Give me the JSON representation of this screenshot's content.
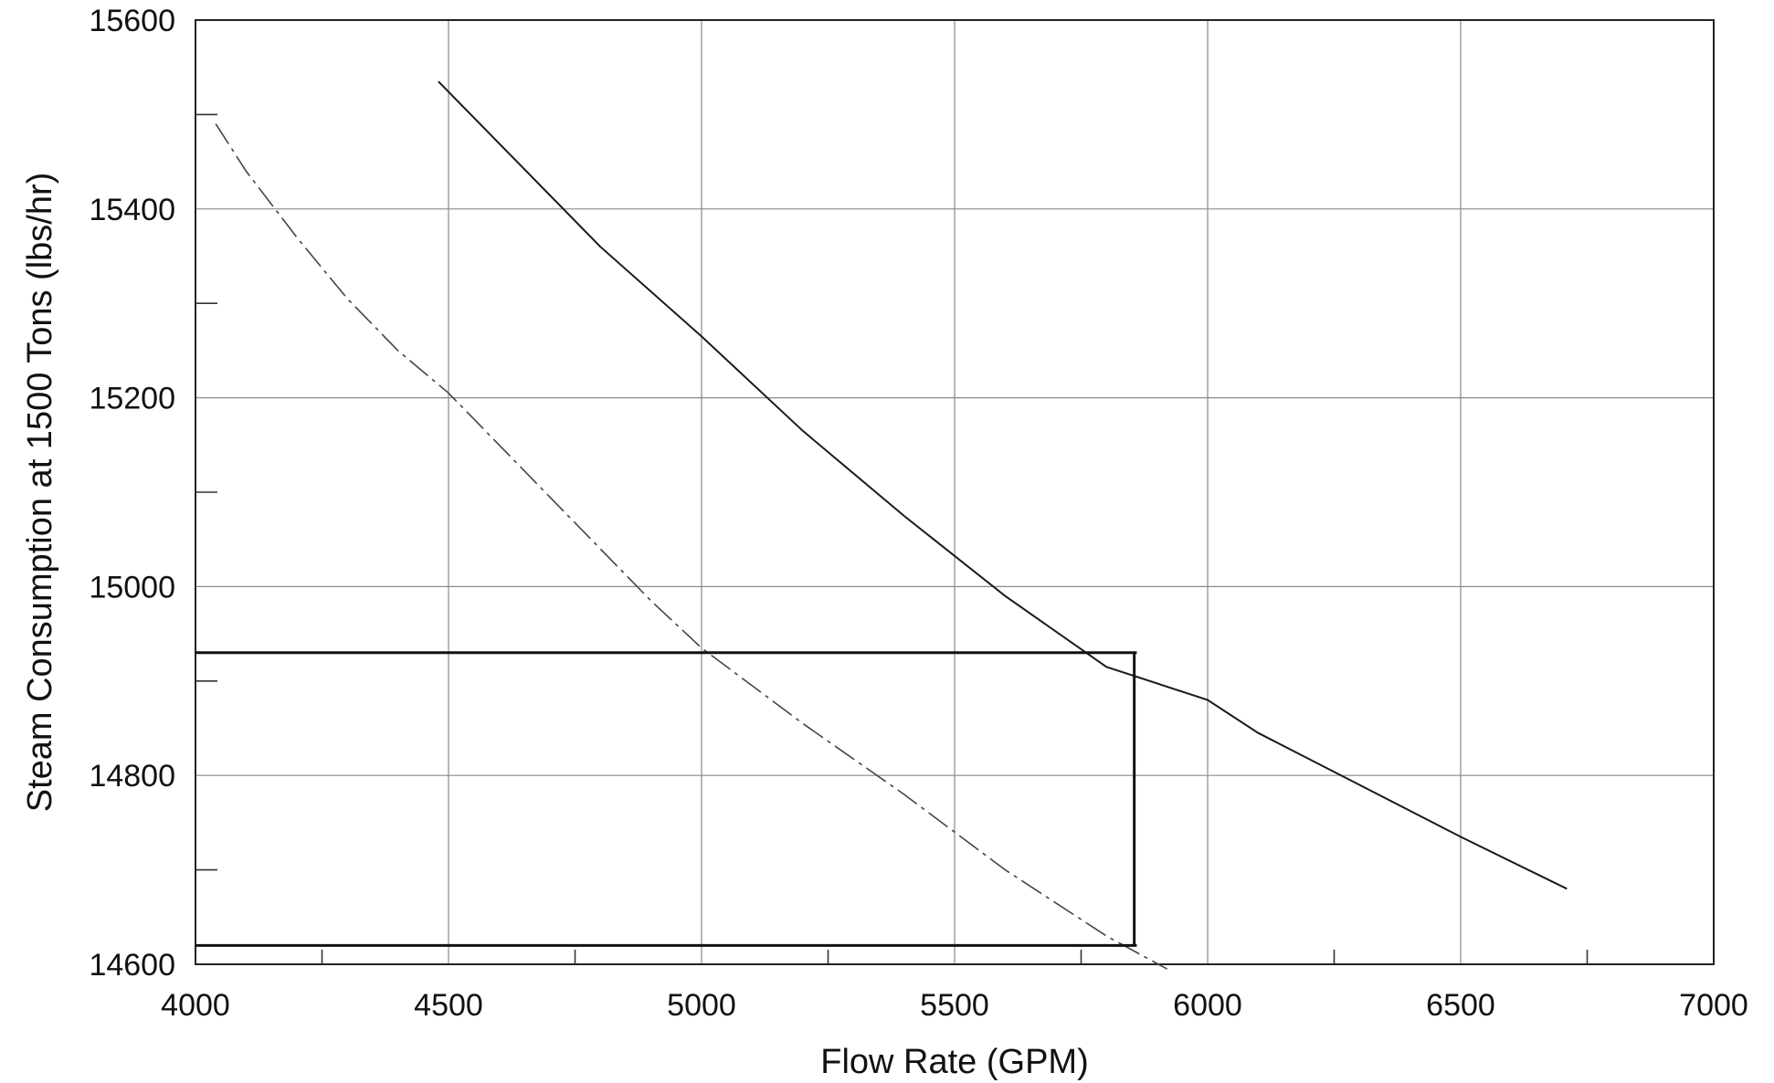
{
  "chart_data": {
    "type": "line",
    "title": "",
    "xlabel": "Flow Rate  (GPM)",
    "ylabel": "Steam Consumption at 1500 Tons  (lbs/hr)",
    "xlim": [
      4000,
      7000
    ],
    "ylim": [
      14600,
      15600
    ],
    "x_ticks": [
      4000,
      4500,
      5000,
      5500,
      6000,
      6500,
      7000
    ],
    "y_ticks": [
      14600,
      14800,
      15000,
      15200,
      15400,
      15600
    ],
    "x_tick_labels": [
      "4000",
      "4500",
      "5000",
      "5500",
      "6000",
      "6500",
      "7000"
    ],
    "y_tick_labels": [
      "14600",
      "14800",
      "15000",
      "15200",
      "15400",
      "15600"
    ],
    "grid": true,
    "legend": "none",
    "series": [
      {
        "style": "solid",
        "x": [
          4480,
          4800,
          5000,
          5200,
          5400,
          5600,
          5800,
          6000,
          6100,
          6300,
          6500,
          6710
        ],
        "y": [
          15535,
          15360,
          15265,
          15165,
          15075,
          14990,
          14915,
          14880,
          14845,
          14790,
          14735,
          14680
        ]
      },
      {
        "style": "hand-drawn",
        "x": [
          4040,
          4100,
          4200,
          4300,
          4400,
          4500,
          4600,
          4700,
          4800,
          4900,
          5000,
          5200,
          5400,
          5600,
          5800,
          5920
        ],
        "y": [
          15490,
          15440,
          15370,
          15305,
          15250,
          15205,
          15150,
          15095,
          15040,
          14985,
          14935,
          14855,
          14780,
          14700,
          14630,
          14595
        ]
      }
    ],
    "annotations": [
      {
        "type": "horizontal",
        "y": 14930,
        "x_from": 4000,
        "x_to": 5860
      },
      {
        "type": "vertical",
        "x": 5855,
        "y_from": 14930,
        "y_to": 14620
      },
      {
        "type": "horizontal",
        "y": 14620,
        "x_from": 4000,
        "x_to": 5860
      }
    ]
  }
}
